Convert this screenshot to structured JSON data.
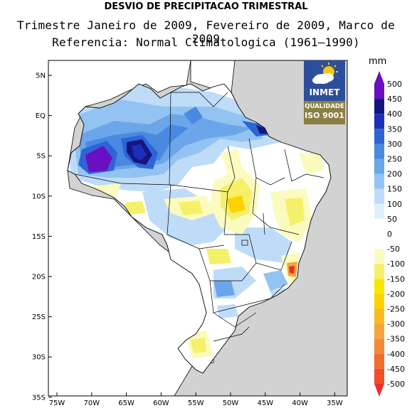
{
  "title": "DESVIO DE PRECIPITACAO TRIMESTRAL",
  "subtitle": "Trimestre Janeiro de 2009, Fevereiro de 2009, Marco de 2009",
  "reference": "Referencia: Normal Climatologica (1961–1990)",
  "unit": "mm",
  "logo": {
    "name": "INMET",
    "quality": "QUALIDADE",
    "iso": "ISO 9001",
    "icon": "sun-cloud-icon"
  },
  "axes": {
    "lat_labels": [
      "5N",
      "EQ",
      "5S",
      "10S",
      "15S",
      "20S",
      "25S",
      "30S",
      "35S"
    ],
    "lon_labels": [
      "75W",
      "70W",
      "65W",
      "60W",
      "55W",
      "50W",
      "45W",
      "40W",
      "35W"
    ]
  },
  "colorbar": {
    "labels": [
      "500",
      "450",
      "400",
      "350",
      "300",
      "250",
      "200",
      "150",
      "100",
      "50",
      "0",
      "-50",
      "-100",
      "-150",
      "-200",
      "-250",
      "-300",
      "-350",
      "-400",
      "-450",
      "-500"
    ],
    "colors": [
      "#6a0fc2",
      "#14167e",
      "#1d2fba",
      "#2e64d6",
      "#4a89e0",
      "#6ba6ea",
      "#93c3f2",
      "#bedcf7",
      "#def0fc",
      "#ffffff",
      "#ffffff",
      "#fbfbbf",
      "#f5f06a",
      "#f6e900",
      "#fbd300",
      "#f8bb1f",
      "#f6a43c",
      "#f48a38",
      "#f36a33",
      "#f04e2d",
      "#e8302a"
    ]
  },
  "colors": {
    "ocean": "#d2d2d2",
    "land": "#ffffff"
  }
}
